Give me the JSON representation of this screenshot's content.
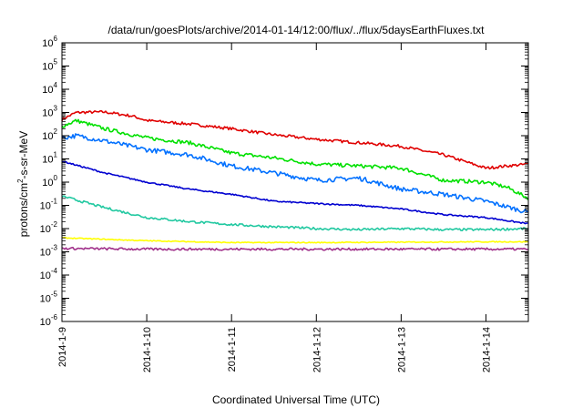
{
  "chart_data": {
    "type": "line",
    "title": "/data/run/goesPlots/archive/2014-01-14/12:00/flux/../flux/5daysEarthFluxes.txt",
    "xlabel": "Coordinated Universal Time (UTC)",
    "ylabel": {
      "prefix": "protons/cm",
      "sup": "2",
      "suffix": "-s-sr-MeV"
    },
    "yscale": "log",
    "ylim": [
      1e-06,
      1000000.0
    ],
    "ytick_labels": [
      {
        "value": 1e-06,
        "base": "10",
        "exp": "-6"
      },
      {
        "value": 1e-05,
        "base": "10",
        "exp": "-5"
      },
      {
        "value": 0.0001,
        "base": "10",
        "exp": "-4"
      },
      {
        "value": 0.001,
        "base": "10",
        "exp": "-3"
      },
      {
        "value": 0.01,
        "base": "10",
        "exp": "-2"
      },
      {
        "value": 0.1,
        "base": "10",
        "exp": "-1"
      },
      {
        "value": 1.0,
        "base": "10",
        "exp": "0"
      },
      {
        "value": 10.0,
        "base": "10",
        "exp": "1"
      },
      {
        "value": 100.0,
        "base": "10",
        "exp": "2"
      },
      {
        "value": 1000.0,
        "base": "10",
        "exp": "3"
      },
      {
        "value": 10000.0,
        "base": "10",
        "exp": "4"
      },
      {
        "value": 100000.0,
        "base": "10",
        "exp": "5"
      },
      {
        "value": 1000000.0,
        "base": "10",
        "exp": "6"
      }
    ],
    "xlim": [
      "2014-01-09T00:00",
      "2014-01-14T12:00"
    ],
    "xtick_labels": [
      {
        "value": "2014-01-09",
        "label": "2014-1-9"
      },
      {
        "value": "2014-01-10",
        "label": "2014-1-10"
      },
      {
        "value": "2014-01-11",
        "label": "2014-1-11"
      },
      {
        "value": "2014-01-12",
        "label": "2014-1-12"
      },
      {
        "value": "2014-01-13",
        "label": "2014-1-13"
      },
      {
        "value": "2014-01-14",
        "label": "2014-1-14"
      }
    ],
    "grid": false,
    "series": [
      {
        "color": "#e00000",
        "noise": 0.06,
        "points": [
          {
            "x": "2014-01-09T00:00",
            "y": 500
          },
          {
            "x": "2014-01-09T04:00",
            "y": 1000
          },
          {
            "x": "2014-01-09T12:00",
            "y": 1050
          },
          {
            "x": "2014-01-09T20:00",
            "y": 700
          },
          {
            "x": "2014-01-10T00:00",
            "y": 450
          },
          {
            "x": "2014-01-10T12:00",
            "y": 320
          },
          {
            "x": "2014-01-11T00:00",
            "y": 200
          },
          {
            "x": "2014-01-11T12:00",
            "y": 110
          },
          {
            "x": "2014-01-12T00:00",
            "y": 70
          },
          {
            "x": "2014-01-12T12:00",
            "y": 50
          },
          {
            "x": "2014-01-13T00:00",
            "y": 35
          },
          {
            "x": "2014-01-13T12:00",
            "y": 15
          },
          {
            "x": "2014-01-14T00:00",
            "y": 4
          },
          {
            "x": "2014-01-14T06:00",
            "y": 5
          },
          {
            "x": "2014-01-14T12:00",
            "y": 6
          }
        ]
      },
      {
        "color": "#00e000",
        "noise": 0.08,
        "points": [
          {
            "x": "2014-01-09T00:00",
            "y": 250
          },
          {
            "x": "2014-01-09T04:00",
            "y": 450
          },
          {
            "x": "2014-01-09T12:00",
            "y": 200
          },
          {
            "x": "2014-01-10T00:00",
            "y": 80
          },
          {
            "x": "2014-01-10T12:00",
            "y": 50
          },
          {
            "x": "2014-01-11T00:00",
            "y": 18
          },
          {
            "x": "2014-01-11T12:00",
            "y": 11
          },
          {
            "x": "2014-01-12T00:00",
            "y": 6
          },
          {
            "x": "2014-01-12T12:00",
            "y": 5
          },
          {
            "x": "2014-01-13T00:00",
            "y": 4
          },
          {
            "x": "2014-01-13T12:00",
            "y": 1.2
          },
          {
            "x": "2014-01-14T00:00",
            "y": 1.0
          },
          {
            "x": "2014-01-14T06:00",
            "y": 0.6
          },
          {
            "x": "2014-01-14T12:00",
            "y": 0.2
          }
        ]
      },
      {
        "color": "#0070ff",
        "noise": 0.1,
        "points": [
          {
            "x": "2014-01-09T00:00",
            "y": 80
          },
          {
            "x": "2014-01-09T04:00",
            "y": 100
          },
          {
            "x": "2014-01-09T12:00",
            "y": 60
          },
          {
            "x": "2014-01-10T00:00",
            "y": 25
          },
          {
            "x": "2014-01-10T12:00",
            "y": 15
          },
          {
            "x": "2014-01-11T00:00",
            "y": 5
          },
          {
            "x": "2014-01-11T12:00",
            "y": 2.5
          },
          {
            "x": "2014-01-12T00:00",
            "y": 1.2
          },
          {
            "x": "2014-01-12T12:00",
            "y": 1.5
          },
          {
            "x": "2014-01-13T00:00",
            "y": 0.5
          },
          {
            "x": "2014-01-13T12:00",
            "y": 0.3
          },
          {
            "x": "2014-01-14T00:00",
            "y": 0.15
          },
          {
            "x": "2014-01-14T12:00",
            "y": 0.05
          }
        ]
      },
      {
        "color": "#0000d0",
        "noise": 0.03,
        "points": [
          {
            "x": "2014-01-09T00:00",
            "y": 8
          },
          {
            "x": "2014-01-09T12:00",
            "y": 2.5
          },
          {
            "x": "2014-01-10T00:00",
            "y": 1.0
          },
          {
            "x": "2014-01-10T12:00",
            "y": 0.5
          },
          {
            "x": "2014-01-11T00:00",
            "y": 0.3
          },
          {
            "x": "2014-01-11T12:00",
            "y": 0.15
          },
          {
            "x": "2014-01-12T00:00",
            "y": 0.12
          },
          {
            "x": "2014-01-12T12:00",
            "y": 0.1
          },
          {
            "x": "2014-01-13T00:00",
            "y": 0.07
          },
          {
            "x": "2014-01-13T12:00",
            "y": 0.04
          },
          {
            "x": "2014-01-14T00:00",
            "y": 0.03
          },
          {
            "x": "2014-01-14T12:00",
            "y": 0.016
          }
        ]
      },
      {
        "color": "#20c8a0",
        "noise": 0.05,
        "points": [
          {
            "x": "2014-01-09T00:00",
            "y": 0.25
          },
          {
            "x": "2014-01-09T12:00",
            "y": 0.08
          },
          {
            "x": "2014-01-10T00:00",
            "y": 0.03
          },
          {
            "x": "2014-01-10T12:00",
            "y": 0.02
          },
          {
            "x": "2014-01-11T00:00",
            "y": 0.015
          },
          {
            "x": "2014-01-11T12:00",
            "y": 0.012
          },
          {
            "x": "2014-01-12T00:00",
            "y": 0.01
          },
          {
            "x": "2014-01-12T12:00",
            "y": 0.009
          },
          {
            "x": "2014-01-13T00:00",
            "y": 0.01
          },
          {
            "x": "2014-01-13T12:00",
            "y": 0.009
          },
          {
            "x": "2014-01-14T00:00",
            "y": 0.009
          },
          {
            "x": "2014-01-14T12:00",
            "y": 0.01
          }
        ]
      },
      {
        "color": "#ffff00",
        "noise": 0.02,
        "points": [
          {
            "x": "2014-01-09T00:00",
            "y": 0.004
          },
          {
            "x": "2014-01-10T00:00",
            "y": 0.003
          },
          {
            "x": "2014-01-11T00:00",
            "y": 0.0025
          },
          {
            "x": "2014-01-12T00:00",
            "y": 0.0025
          },
          {
            "x": "2014-01-13T00:00",
            "y": 0.0026
          },
          {
            "x": "2014-01-14T00:00",
            "y": 0.0027
          },
          {
            "x": "2014-01-14T12:00",
            "y": 0.0027
          }
        ]
      },
      {
        "color": "#a0308a",
        "noise": 0.05,
        "points": [
          {
            "x": "2014-01-09T00:00",
            "y": 0.0014
          },
          {
            "x": "2014-01-10T00:00",
            "y": 0.0013
          },
          {
            "x": "2014-01-11T00:00",
            "y": 0.0013
          },
          {
            "x": "2014-01-12T00:00",
            "y": 0.0013
          },
          {
            "x": "2014-01-13T00:00",
            "y": 0.0013
          },
          {
            "x": "2014-01-14T00:00",
            "y": 0.0013
          },
          {
            "x": "2014-01-14T12:00",
            "y": 0.0013
          }
        ]
      }
    ]
  }
}
